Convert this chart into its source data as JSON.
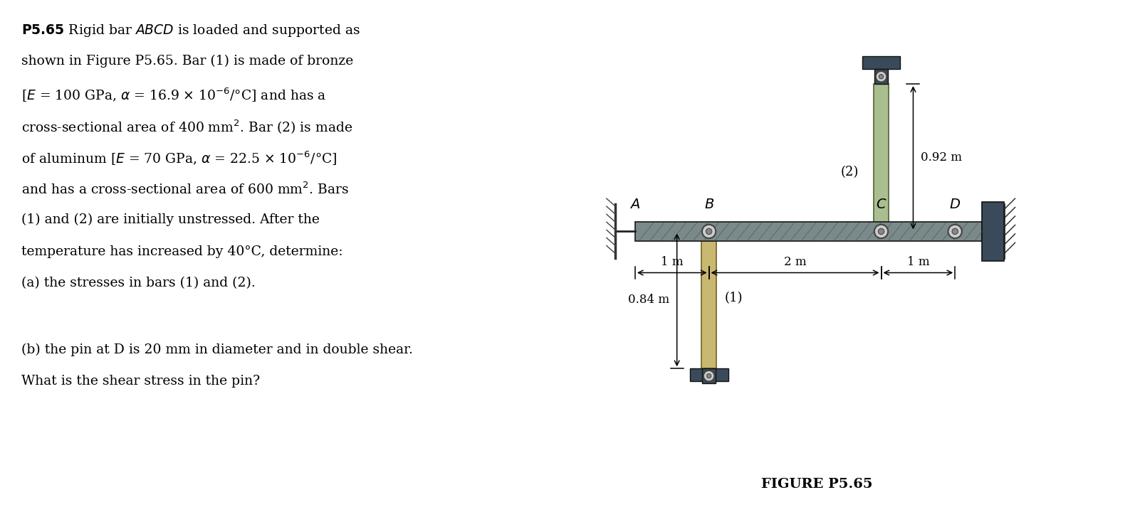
{
  "background_color": "#ffffff",
  "text_color": "#000000",
  "bar_color_bronze": "#c8b870",
  "bar_color_steel": "#7a8a8a",
  "bar_color_green": "#aabf90",
  "bar_color_dark": "#3a4a5a",
  "figure_caption": "FIGURE P5.65",
  "dim_AB": "1 m",
  "dim_BC": "2 m",
  "dim_CD": "1 m",
  "dim_bar2": "0.92 m",
  "dim_bar1": "0.84 m",
  "label_A": "A",
  "label_B": "B",
  "label_C": "C",
  "label_D": "D",
  "label_bar1": "(1)",
  "label_bar2": "(2)"
}
